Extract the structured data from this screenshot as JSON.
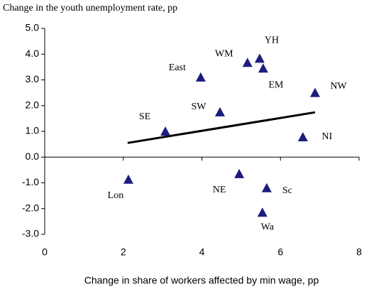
{
  "chart_data": {
    "type": "scatter",
    "title": "Change in the youth unemployment rate, pp",
    "x_label": "Change in share of workers affected by min wage, pp",
    "xlim": [
      0,
      8
    ],
    "xticks": [
      0,
      2,
      4,
      6,
      8
    ],
    "ylim": [
      -3,
      5
    ],
    "yticks": [
      {
        "value": -3,
        "label": "-3.0"
      },
      {
        "value": -2,
        "label": "-2.0"
      },
      {
        "value": -1,
        "label": "-1.0"
      },
      {
        "value": 0,
        "label": "0.0"
      },
      {
        "value": 1,
        "label": "1.0"
      },
      {
        "value": 2,
        "label": "2.0"
      },
      {
        "value": 3,
        "label": "3.0"
      },
      {
        "value": 4,
        "label": "4.0"
      },
      {
        "value": 5,
        "label": "5.0"
      }
    ],
    "series": [
      {
        "color": "#1c1c7e",
        "labels": [
          "YH",
          "WM",
          "EM",
          "East",
          "NW",
          "SW",
          "SE",
          "NI",
          "Lon",
          "NE",
          "Sc",
          "Wa"
        ],
        "x": [
          5.47,
          5.16,
          5.56,
          3.97,
          6.88,
          4.46,
          3.07,
          6.57,
          2.13,
          4.95,
          5.65,
          5.54
        ],
        "values": [
          3.83,
          3.67,
          3.45,
          3.1,
          2.5,
          1.75,
          1.0,
          0.78,
          -0.87,
          -0.65,
          -1.2,
          -2.15
        ]
      }
    ],
    "trend": {
      "color": "#000000",
      "x": [
        2.11,
        6.88
      ],
      "values": [
        0.55,
        1.74
      ]
    }
  }
}
